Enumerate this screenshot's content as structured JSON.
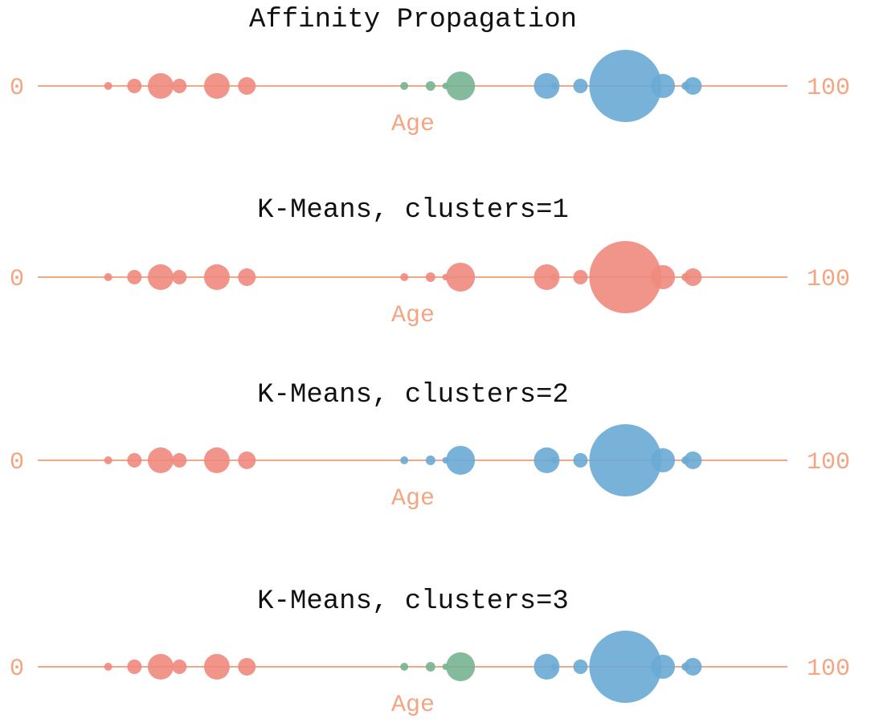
{
  "chart_data": [
    {
      "type": "scatter",
      "title": "Affinity Propagation",
      "xlabel": "Age",
      "x_range": [
        0,
        100
      ],
      "x_tick_labels": [
        "0",
        "100"
      ],
      "grid": false,
      "points": [
        {
          "x": 9.5,
          "size": 5,
          "cluster": 0
        },
        {
          "x": 13,
          "size": 9,
          "cluster": 0
        },
        {
          "x": 16.5,
          "size": 16,
          "cluster": 0
        },
        {
          "x": 19,
          "size": 9,
          "cluster": 0
        },
        {
          "x": 24,
          "size": 16,
          "cluster": 0
        },
        {
          "x": 28,
          "size": 11,
          "cluster": 0
        },
        {
          "x": 49,
          "size": 5,
          "cluster": 2
        },
        {
          "x": 52.5,
          "size": 6,
          "cluster": 2
        },
        {
          "x": 54.5,
          "size": 4,
          "cluster": 2
        },
        {
          "x": 56.5,
          "size": 18,
          "cluster": 2
        },
        {
          "x": 68,
          "size": 16,
          "cluster": 1
        },
        {
          "x": 69,
          "size": 4,
          "cluster": 1
        },
        {
          "x": 72.5,
          "size": 9,
          "cluster": 1
        },
        {
          "x": 78.5,
          "size": 45,
          "cluster": 1
        },
        {
          "x": 83.5,
          "size": 15,
          "cluster": 1
        },
        {
          "x": 86.5,
          "size": 5,
          "cluster": 1
        },
        {
          "x": 87.5,
          "size": 11,
          "cluster": 1
        }
      ]
    },
    {
      "type": "scatter",
      "title": "K-Means, clusters=1",
      "xlabel": "Age",
      "x_range": [
        0,
        100
      ],
      "x_tick_labels": [
        "0",
        "100"
      ],
      "grid": false,
      "points": [
        {
          "x": 9.5,
          "size": 5,
          "cluster": 0
        },
        {
          "x": 13,
          "size": 9,
          "cluster": 0
        },
        {
          "x": 16.5,
          "size": 16,
          "cluster": 0
        },
        {
          "x": 19,
          "size": 9,
          "cluster": 0
        },
        {
          "x": 24,
          "size": 16,
          "cluster": 0
        },
        {
          "x": 28,
          "size": 11,
          "cluster": 0
        },
        {
          "x": 49,
          "size": 5,
          "cluster": 0
        },
        {
          "x": 52.5,
          "size": 6,
          "cluster": 0
        },
        {
          "x": 54.5,
          "size": 4,
          "cluster": 0
        },
        {
          "x": 56.5,
          "size": 18,
          "cluster": 0
        },
        {
          "x": 68,
          "size": 16,
          "cluster": 0
        },
        {
          "x": 69,
          "size": 4,
          "cluster": 0
        },
        {
          "x": 72.5,
          "size": 9,
          "cluster": 0
        },
        {
          "x": 78.5,
          "size": 45,
          "cluster": 0
        },
        {
          "x": 83.5,
          "size": 15,
          "cluster": 0
        },
        {
          "x": 86.5,
          "size": 5,
          "cluster": 0
        },
        {
          "x": 87.5,
          "size": 11,
          "cluster": 0
        }
      ]
    },
    {
      "type": "scatter",
      "title": "K-Means, clusters=2",
      "xlabel": "Age",
      "x_range": [
        0,
        100
      ],
      "x_tick_labels": [
        "0",
        "100"
      ],
      "grid": false,
      "points": [
        {
          "x": 9.5,
          "size": 5,
          "cluster": 0
        },
        {
          "x": 13,
          "size": 9,
          "cluster": 0
        },
        {
          "x": 16.5,
          "size": 16,
          "cluster": 0
        },
        {
          "x": 19,
          "size": 9,
          "cluster": 0
        },
        {
          "x": 24,
          "size": 16,
          "cluster": 0
        },
        {
          "x": 28,
          "size": 11,
          "cluster": 0
        },
        {
          "x": 49,
          "size": 5,
          "cluster": 1
        },
        {
          "x": 52.5,
          "size": 6,
          "cluster": 1
        },
        {
          "x": 54.5,
          "size": 4,
          "cluster": 1
        },
        {
          "x": 56.5,
          "size": 18,
          "cluster": 1
        },
        {
          "x": 68,
          "size": 16,
          "cluster": 1
        },
        {
          "x": 69,
          "size": 4,
          "cluster": 1
        },
        {
          "x": 72.5,
          "size": 9,
          "cluster": 1
        },
        {
          "x": 78.5,
          "size": 45,
          "cluster": 1
        },
        {
          "x": 83.5,
          "size": 15,
          "cluster": 1
        },
        {
          "x": 86.5,
          "size": 5,
          "cluster": 1
        },
        {
          "x": 87.5,
          "size": 11,
          "cluster": 1
        }
      ]
    },
    {
      "type": "scatter",
      "title": "K-Means, clusters=3",
      "xlabel": "Age",
      "x_range": [
        0,
        100
      ],
      "x_tick_labels": [
        "0",
        "100"
      ],
      "grid": false,
      "points": [
        {
          "x": 9.5,
          "size": 5,
          "cluster": 0
        },
        {
          "x": 13,
          "size": 9,
          "cluster": 0
        },
        {
          "x": 16.5,
          "size": 16,
          "cluster": 0
        },
        {
          "x": 19,
          "size": 9,
          "cluster": 0
        },
        {
          "x": 24,
          "size": 16,
          "cluster": 0
        },
        {
          "x": 28,
          "size": 11,
          "cluster": 0
        },
        {
          "x": 49,
          "size": 5,
          "cluster": 2
        },
        {
          "x": 52.5,
          "size": 6,
          "cluster": 2
        },
        {
          "x": 54.5,
          "size": 4,
          "cluster": 2
        },
        {
          "x": 56.5,
          "size": 18,
          "cluster": 2
        },
        {
          "x": 68,
          "size": 16,
          "cluster": 1
        },
        {
          "x": 69,
          "size": 4,
          "cluster": 1
        },
        {
          "x": 72.5,
          "size": 9,
          "cluster": 1
        },
        {
          "x": 78.5,
          "size": 45,
          "cluster": 1
        },
        {
          "x": 83.5,
          "size": 15,
          "cluster": 1
        },
        {
          "x": 86.5,
          "size": 5,
          "cluster": 1
        },
        {
          "x": 87.5,
          "size": 11,
          "cluster": 1
        }
      ]
    }
  ],
  "colors": {
    "axis": "#f08a5d",
    "label": "#f4a582",
    "title": "#111111",
    "cluster_0": "#ef8a7d",
    "cluster_1": "#6aaad5",
    "cluster_2": "#77b492"
  }
}
